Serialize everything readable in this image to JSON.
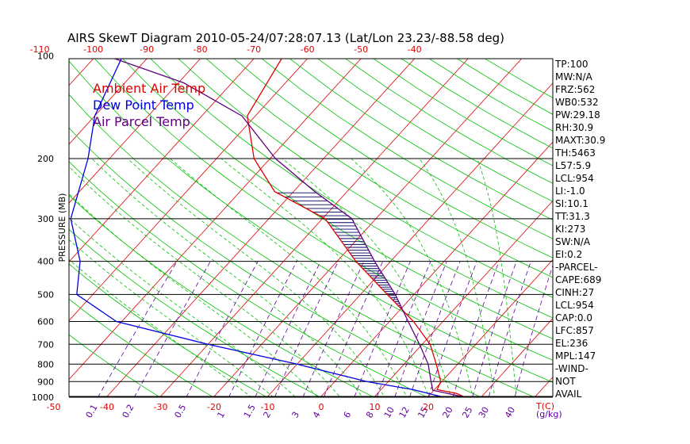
{
  "chart_data": {
    "type": "line",
    "title": "AIRS SkewT Diagram 2010-05-24/07:28:07.13 (Lat/Lon 23.23/-88.58 deg)",
    "ylabel": "PRESSURE (MB)",
    "xlabel": "T(C)",
    "mixing_ratio_unit": "(g/kg)",
    "legend": [
      "Ambient Air Temp",
      "Dew Point Temp",
      "Air Parcel Temp"
    ],
    "legend_colors": [
      "#e00000",
      "#0000e0",
      "#600080"
    ],
    "pressure_ticks": [
      100,
      200,
      300,
      400,
      500,
      600,
      700,
      800,
      900,
      1000
    ],
    "bottom_temp_ticks": [
      -50,
      -40,
      -30,
      -20,
      -10,
      0,
      10,
      20
    ],
    "top_temp_ticks": [
      -120,
      -110,
      -100,
      -90,
      -80,
      -70,
      -60,
      -50,
      -40
    ],
    "mixing_ratio_labels": [
      "0.1",
      "0.2",
      "0.5",
      "1",
      "1.5",
      "2",
      "3",
      "4",
      "6",
      "8",
      "10",
      "12",
      "15",
      "20",
      "25",
      "30",
      "40"
    ],
    "series": [
      {
        "name": "Ambient Air Temp",
        "color": "#e00000",
        "x": [
          27.0,
          24.8,
          20.5,
          19.8,
          16.0,
          11.5,
          4.5,
          -5.0,
          -16.5,
          -29.5,
          -43.5,
          -53.0,
          -61.5,
          -65.0
        ],
        "y": [
          1000,
          975,
          950,
          900,
          800,
          700,
          600,
          500,
          400,
          300,
          250,
          200,
          150,
          100
        ]
      },
      {
        "name": "Dew Point Temp",
        "color": "#0000e0",
        "x": [
          23.0,
          16.0,
          6.0,
          -10.0,
          -30.0,
          -51.0,
          -63.0,
          -68.0,
          -77.0,
          -84.0,
          -90.0,
          -95.0
        ],
        "y": [
          1000,
          950,
          900,
          800,
          700,
          600,
          500,
          400,
          300,
          200,
          150,
          100
        ]
      },
      {
        "name": "Air Parcel Temp",
        "color": "#600080",
        "x": [
          27.0,
          19.8,
          18.0,
          14.5,
          9.5,
          3.5,
          -3.5,
          -13.0,
          -24.5,
          -36.0,
          -49.0,
          -62.5,
          -79.0,
          -98.0
        ],
        "y": [
          1000,
          954,
          900,
          800,
          700,
          600,
          500,
          400,
          300,
          250,
          200,
          150,
          120,
          100
        ]
      }
    ],
    "x_range": [
      -50,
      25
    ],
    "y_range": [
      1050,
      100
    ]
  },
  "indices": [
    "TP:100",
    "MW:N/A",
    "FRZ:562",
    "WB0:532",
    "PW:29.18",
    "RH:30.9",
    "MAXT:30.9",
    "TH:5463",
    "L57:5.9",
    "LCL:954",
    "LI:-1.0",
    "SI:10.1",
    "TT:31.3",
    "KI:273",
    "SW:N/A",
    "EI:0.2",
    "-PARCEL-",
    "CAPE:689",
    "CINH:27",
    "LCL:954",
    "CAP:0.0",
    "LFC:857",
    "EL:236",
    "MPL:147",
    "-WIND-",
    "NOT",
    "AVAIL"
  ]
}
